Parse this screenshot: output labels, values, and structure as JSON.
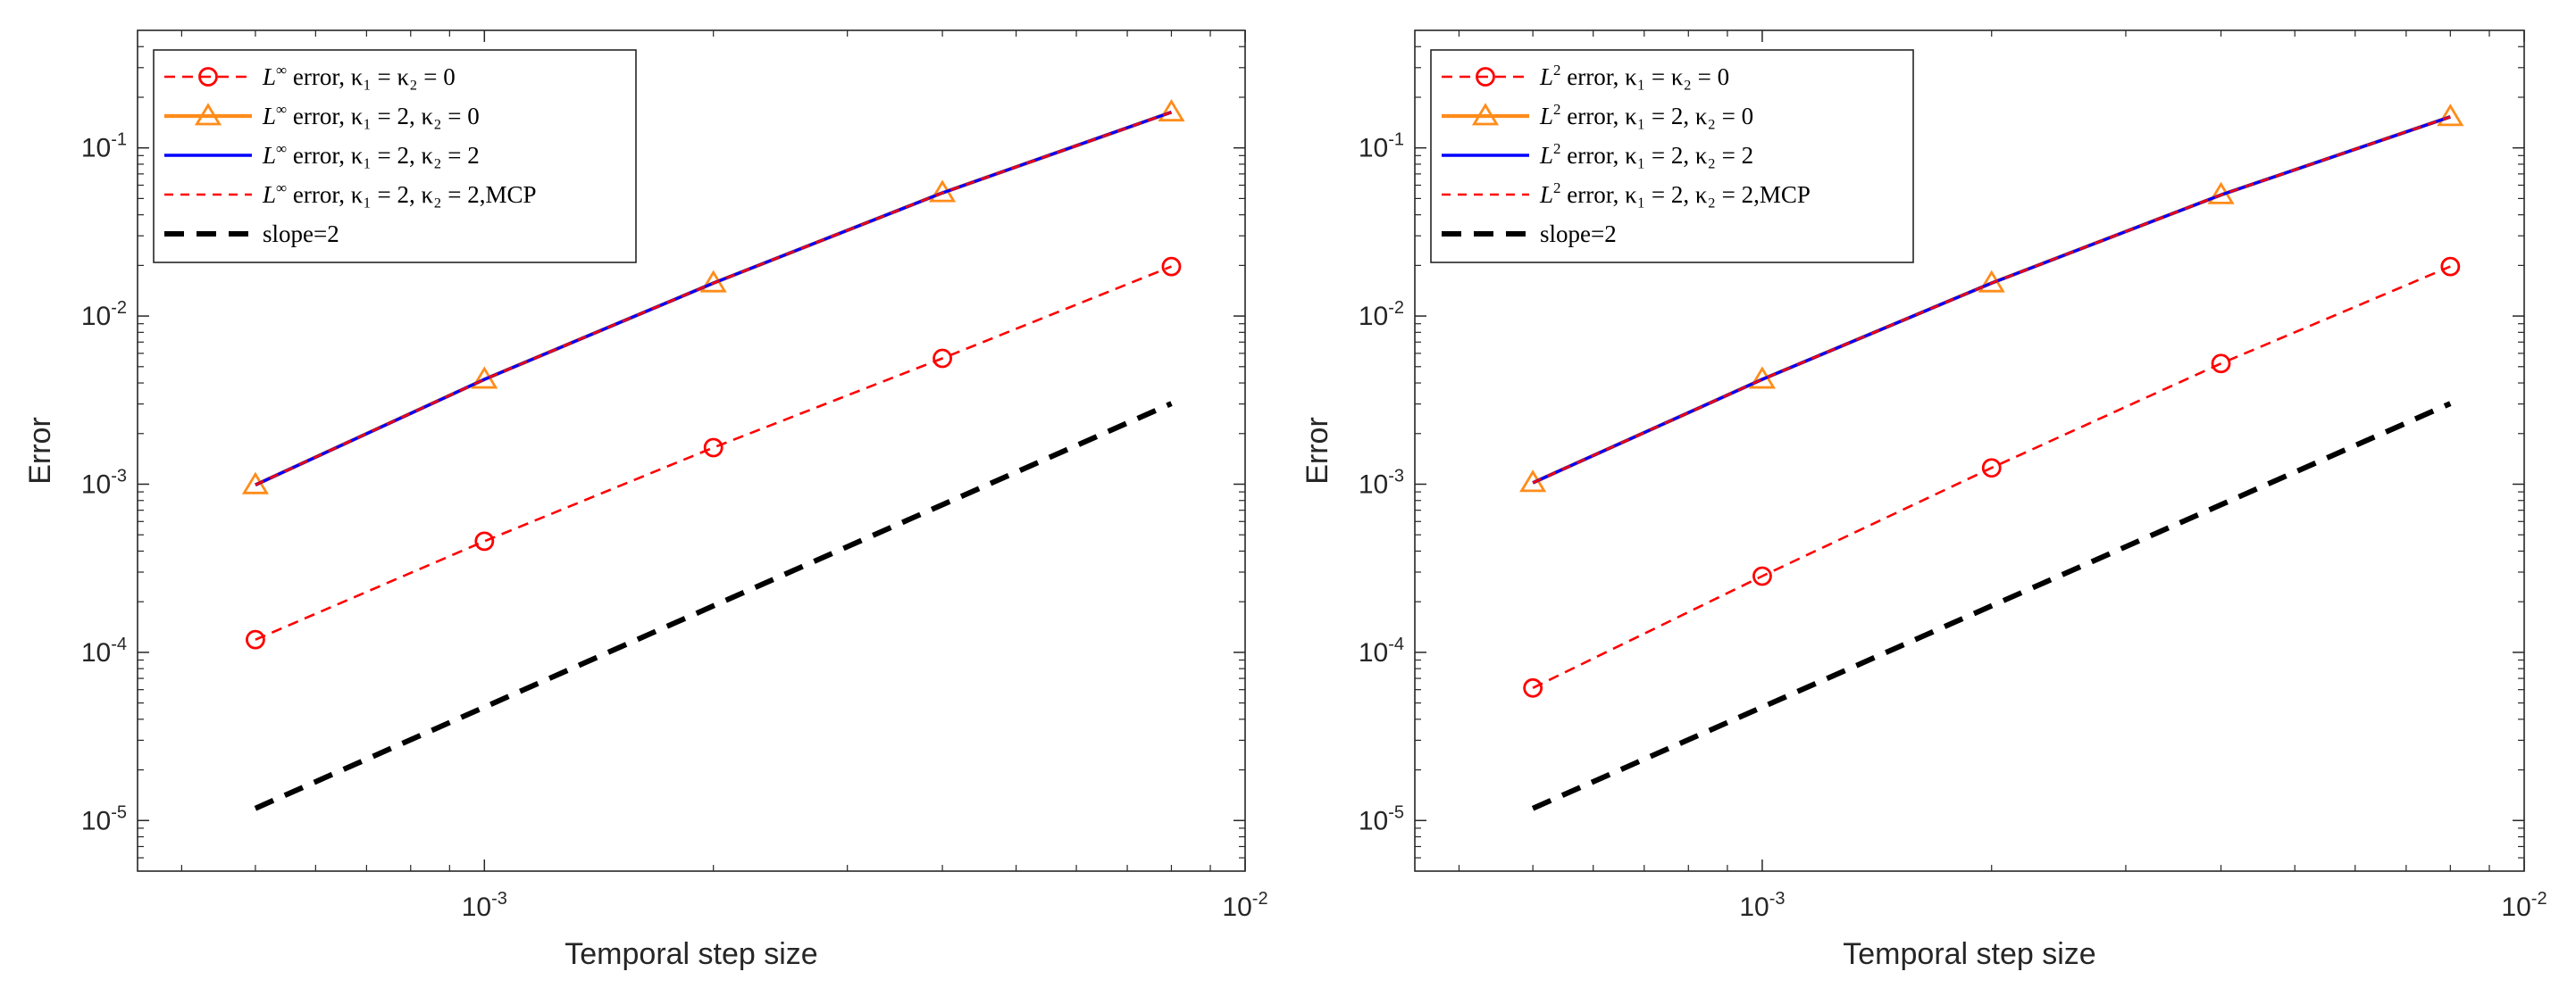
{
  "colors": {
    "red": "#ff0000",
    "orange": "#ff8c1a",
    "blue": "#0000ff",
    "black": "#000000",
    "axis": "#262626"
  },
  "chart_data": [
    {
      "type": "line",
      "xscale": "log",
      "yscale": "log",
      "title": "",
      "xlabel": "Temporal step size",
      "ylabel": "Error",
      "xlim": [
        0.00035,
        0.01
      ],
      "ylim": [
        5e-06,
        0.5
      ],
      "xticks": [
        {
          "value": 0.001,
          "base": "10",
          "exp": "-3"
        },
        {
          "value": 0.01,
          "base": "10",
          "exp": "-2"
        }
      ],
      "yticks": [
        {
          "value": 1e-05,
          "base": "10",
          "exp": "-5"
        },
        {
          "value": 0.0001,
          "base": "10",
          "exp": "-4"
        },
        {
          "value": 0.001,
          "base": "10",
          "exp": "-3"
        },
        {
          "value": 0.01,
          "base": "10",
          "exp": "-2"
        },
        {
          "value": 0.1,
          "base": "10",
          "exp": "-1"
        }
      ],
      "legend_position": "top-left",
      "x": [
        0.0005,
        0.001,
        0.002,
        0.004,
        0.008
      ],
      "series": [
        {
          "name_prefix": "L",
          "name_sup": "∞",
          "name_suffix": " error, κ₁ = κ₂ = 0",
          "style": "red-dashed-circle",
          "values": [
            0.000119,
            0.000458,
            0.00165,
            0.0056,
            0.0197
          ]
        },
        {
          "name_prefix": "L",
          "name_sup": "∞",
          "name_suffix": " error, κ₁ = 2, κ₂ = 0",
          "style": "orange-solid-triangle",
          "values": [
            0.00099,
            0.0042,
            0.0157,
            0.054,
            0.163
          ]
        },
        {
          "name_prefix": "L",
          "name_sup": "∞",
          "name_suffix": " error, κ₁ = 2, κ₂ = 2",
          "style": "blue-solid",
          "values": [
            0.00099,
            0.0042,
            0.0157,
            0.054,
            0.163
          ]
        },
        {
          "name_prefix": "L",
          "name_sup": "∞",
          "name_suffix": " error, κ₁ = 2, κ₂ = 2,MCP",
          "style": "red-dashed",
          "values": [
            0.00099,
            0.0042,
            0.0157,
            0.054,
            0.163
          ]
        },
        {
          "name_prefix": "",
          "name_sup": "",
          "name_suffix": "slope=2",
          "style": "black-thick-dashed",
          "values": [
            1.18e-05,
            4.72e-05,
            0.000189,
            0.000755,
            0.00302
          ]
        }
      ]
    },
    {
      "type": "line",
      "xscale": "log",
      "yscale": "log",
      "title": "",
      "xlabel": "Temporal step size",
      "ylabel": "Error",
      "xlim": [
        0.00035,
        0.01
      ],
      "ylim": [
        5e-06,
        0.5
      ],
      "xticks": [
        {
          "value": 0.001,
          "base": "10",
          "exp": "-3"
        },
        {
          "value": 0.01,
          "base": "10",
          "exp": "-2"
        }
      ],
      "yticks": [
        {
          "value": 1e-05,
          "base": "10",
          "exp": "-5"
        },
        {
          "value": 0.0001,
          "base": "10",
          "exp": "-4"
        },
        {
          "value": 0.001,
          "base": "10",
          "exp": "-3"
        },
        {
          "value": 0.01,
          "base": "10",
          "exp": "-2"
        },
        {
          "value": 0.1,
          "base": "10",
          "exp": "-1"
        }
      ],
      "legend_position": "top-left",
      "x": [
        0.0005,
        0.001,
        0.002,
        0.004,
        0.008
      ],
      "series": [
        {
          "name_prefix": "L",
          "name_sup": "2",
          "name_suffix": " error, κ₁ = κ₂ = 0",
          "style": "red-dashed-circle",
          "values": [
            6.14e-05,
            0.000284,
            0.00125,
            0.00522,
            0.0197
          ]
        },
        {
          "name_prefix": "L",
          "name_sup": "2",
          "name_suffix": " error, κ₁ = 2, κ₂ = 0",
          "style": "orange-solid-triangle",
          "values": [
            0.00102,
            0.0042,
            0.0157,
            0.0525,
            0.153
          ]
        },
        {
          "name_prefix": "L",
          "name_sup": "2",
          "name_suffix": " error, κ₁ = 2, κ₂ = 2",
          "style": "blue-solid",
          "values": [
            0.00102,
            0.0042,
            0.0157,
            0.0525,
            0.153
          ]
        },
        {
          "name_prefix": "L",
          "name_sup": "2",
          "name_suffix": " error, κ₁ = 2, κ₂ = 2,MCP",
          "style": "red-dashed",
          "values": [
            0.00102,
            0.0042,
            0.0157,
            0.0525,
            0.153
          ]
        },
        {
          "name_prefix": "",
          "name_sup": "",
          "name_suffix": "slope=2",
          "style": "black-thick-dashed",
          "values": [
            1.18e-05,
            4.72e-05,
            0.000189,
            0.000755,
            0.00302
          ]
        }
      ]
    }
  ]
}
